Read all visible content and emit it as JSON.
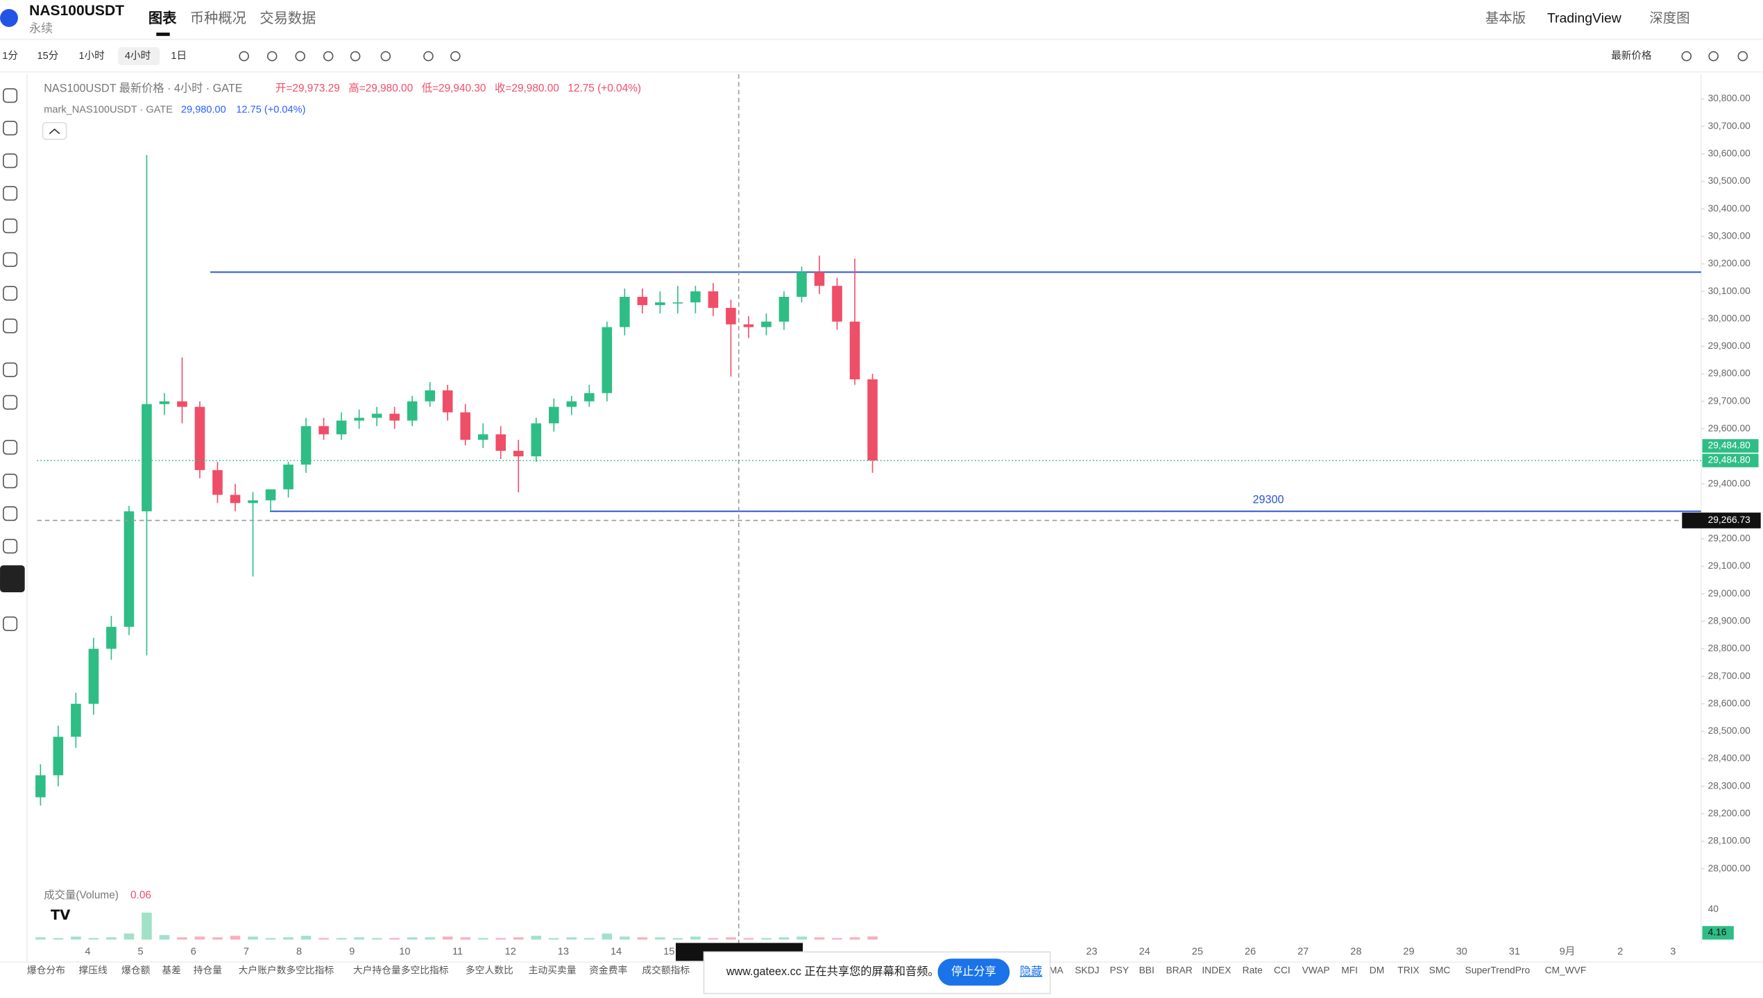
{
  "header": {
    "symbol": "NAS100USDT",
    "subtitle": "永续",
    "tabs": [
      "图表",
      "币种概况",
      "交易数据"
    ],
    "right": [
      "基本版",
      "TradingView",
      "深度图"
    ]
  },
  "toolbar": {
    "intervals": [
      "1分",
      "15分",
      "1小时",
      "4小时",
      "1日"
    ],
    "price_type": "最新价格"
  },
  "legend": {
    "title": "NAS100USDT 最新价格 · 4小时 · GATE",
    "open": "开=29,973.29",
    "high": "高=29,980.00",
    "low": "低=29,940.30",
    "close": "收=29,980.00",
    "change": "12.75 (+0.04%)",
    "mark_title": "mark_NAS100USDT · GATE",
    "mark_price": "29,980.00",
    "mark_change": "12.75 (+0.04%)",
    "volume_title": "成交量(Volume)",
    "volume_value": "0.06"
  },
  "chart_data": {
    "type": "candlestick",
    "up_color": "#2ebd85",
    "down_color": "#ef4e68",
    "grid": false,
    "open": [
      28260,
      28340,
      28480,
      28600,
      28800,
      28880,
      29300,
      29690,
      29700,
      29680,
      29450,
      29360,
      29330,
      29340,
      29380,
      29470,
      29610,
      29580,
      29630,
      29640,
      29655,
      29630,
      29700,
      29740,
      29660,
      29560,
      29580,
      29520,
      29500,
      29620,
      29680,
      29700,
      29730,
      29970,
      30080,
      30050,
      30060,
      30060,
      30100,
      30040,
      29980,
      29970,
      29990,
      30080,
      30170,
      30120,
      29990,
      29780
    ],
    "high": [
      28380,
      28520,
      28640,
      28840,
      28920,
      29320,
      30596,
      29730,
      29860,
      29700,
      29480,
      29400,
      29370,
      29370,
      29480,
      29640,
      29640,
      29660,
      29670,
      29680,
      29680,
      29720,
      29770,
      29760,
      29690,
      29620,
      29610,
      29560,
      29640,
      29710,
      29720,
      29760,
      29990,
      30110,
      30110,
      30100,
      30120,
      30120,
      30130,
      30070,
      30010,
      30020,
      30100,
      30190,
      30230,
      30150,
      30219,
      29800
    ],
    "low": [
      28230,
      28300,
      28440,
      28560,
      28760,
      28850,
      28776,
      29650,
      29620,
      29420,
      29330,
      29300,
      29063,
      29300,
      29350,
      29440,
      29560,
      29560,
      29600,
      29610,
      29600,
      29610,
      29680,
      29630,
      29540,
      29530,
      29490,
      29369,
      29480,
      29590,
      29650,
      29680,
      29700,
      29940,
      30020,
      30020,
      30020,
      30020,
      30010,
      29790,
      29930,
      29940,
      29960,
      30060,
      30090,
      29960,
      29760,
      29440
    ],
    "close": [
      28340,
      28480,
      28600,
      28800,
      28880,
      29300,
      29690,
      29700,
      29680,
      29450,
      29360,
      29330,
      29340,
      29380,
      29470,
      29610,
      29580,
      29630,
      29640,
      29655,
      29630,
      29700,
      29740,
      29660,
      29560,
      29580,
      29520,
      29500,
      29620,
      29680,
      29700,
      29730,
      29970,
      30080,
      30050,
      30060,
      30060,
      30100,
      30040,
      29980,
      29970,
      29990,
      30080,
      30170,
      30120,
      29990,
      29780,
      29484.8
    ],
    "volume": [
      3,
      2,
      4,
      2,
      3,
      8,
      36,
      6,
      3,
      4,
      3,
      5,
      4,
      2,
      3,
      5,
      2,
      2,
      3,
      2,
      2,
      3,
      3,
      4,
      3,
      2,
      2,
      3,
      5,
      2,
      3,
      2,
      8,
      4,
      3,
      3,
      2,
      4,
      2,
      3,
      2,
      2,
      3,
      4,
      3,
      2,
      3,
      4.16
    ],
    "volume_value_labels": {
      "47": "4.16"
    },
    "volume_ylim": [
      0,
      45
    ],
    "volume_yticks": [
      40
    ],
    "ylim": [
      27950,
      30850
    ],
    "yticks": [
      {
        "value": 30800,
        "label": "30,800.00"
      },
      {
        "value": 30700,
        "label": "30,700.00"
      },
      {
        "value": 30600,
        "label": "30,600.00"
      },
      {
        "value": 30500,
        "label": "30,500.00"
      },
      {
        "value": 30400,
        "label": "30,400.00"
      },
      {
        "value": 30300,
        "label": "30,300.00"
      },
      {
        "value": 30200,
        "label": "30,200.00"
      },
      {
        "value": 30100,
        "label": "30,100.00"
      },
      {
        "value": 30000,
        "label": "30,000.00"
      },
      {
        "value": 29900,
        "label": "29,900.00"
      },
      {
        "value": 29800,
        "label": "29,800.00"
      },
      {
        "value": 29700,
        "label": "29,700.00"
      },
      {
        "value": 29600,
        "label": "29,600.00"
      },
      {
        "value": 29400,
        "label": "29,400.00"
      },
      {
        "value": 29200,
        "label": "29,200.00"
      },
      {
        "value": 29100,
        "label": "29,100.00"
      },
      {
        "value": 29000,
        "label": "29,000.00"
      },
      {
        "value": 28900,
        "label": "28,900.00"
      },
      {
        "value": 28800,
        "label": "28,800.00"
      },
      {
        "value": 28700,
        "label": "28,700.00"
      },
      {
        "value": 28600,
        "label": "28,600.00"
      },
      {
        "value": 28500,
        "label": "28,500.00"
      },
      {
        "value": 28400,
        "label": "28,400.00"
      },
      {
        "value": 28300,
        "label": "28,300.00"
      },
      {
        "value": 28200,
        "label": "28,200.00"
      },
      {
        "value": 28100,
        "label": "28,100.00"
      },
      {
        "value": 28000,
        "label": "28,000.00"
      }
    ],
    "hlines": [
      {
        "value": 30170
      },
      {
        "value": 29300,
        "label": "29300"
      }
    ],
    "price_tags": [
      {
        "value": 29484.8,
        "label": "29,484.80"
      },
      {
        "value": 29484.8,
        "label": "29,484.80"
      }
    ],
    "crosshair": {
      "value": 29266.73,
      "label": "29,266.73"
    },
    "x_labels": [
      "4",
      "5",
      "6",
      "7",
      "8",
      "9",
      "10",
      "11",
      "12",
      "13",
      "14",
      "15",
      "23",
      "24",
      "25",
      "26",
      "27",
      "28",
      "29",
      "30",
      "31",
      "9月",
      "2",
      "3"
    ]
  },
  "indicators": [
    "爆仓分布",
    "撑压线",
    "爆仓额",
    "基差",
    "持仓量",
    "大户账户数多空比指标",
    "大户持仓量多空比指标",
    "多空人数比",
    "主动买卖量",
    "资金费率",
    "成交额指标",
    "MA",
    "SKDJ",
    "PSY",
    "BBI",
    "BRAR",
    "INDEX",
    "Rate",
    "CCI",
    "VWAP",
    "MFI",
    "DM",
    "TRIX",
    "SMC",
    "SuperTrendPro",
    "CM_WVF"
  ],
  "share_bar": {
    "message": "www.gateex.cc 正在共享您的屏幕和音频。",
    "stop": "停止分享",
    "hide": "隐藏"
  }
}
